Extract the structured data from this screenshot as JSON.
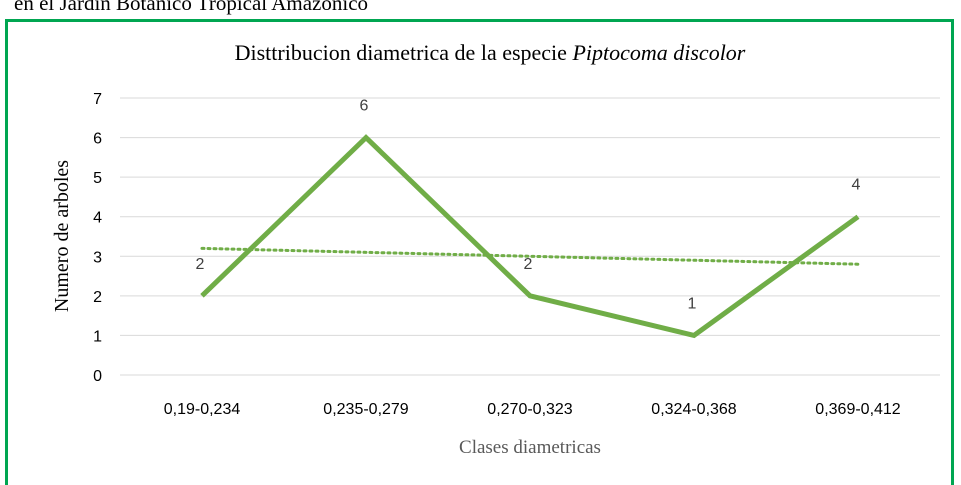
{
  "caption_top": "en el Jardín Botánico Tropical Amazónico",
  "chart_data": {
    "type": "line",
    "title": "Disttribucion diametrica de la especie",
    "title_species": "Piptocoma discolor",
    "x_label": "Clases diametricas",
    "y_label": "Numero de arboles",
    "categories": [
      "0,19-0,234",
      "0,235-0,279",
      "0,270-0,323",
      "0,324-0,368",
      "0,369-0,412"
    ],
    "values": [
      2,
      6,
      2,
      1,
      4
    ],
    "color": "#70ad47",
    "trendline": {
      "values": [
        3.2,
        3.1,
        3.0,
        2.9,
        2.8
      ],
      "color": "#70ad47"
    },
    "ylim": [
      0,
      7
    ],
    "yticks": [
      0,
      1,
      2,
      3,
      4,
      5,
      6,
      7
    ],
    "grid": true
  }
}
